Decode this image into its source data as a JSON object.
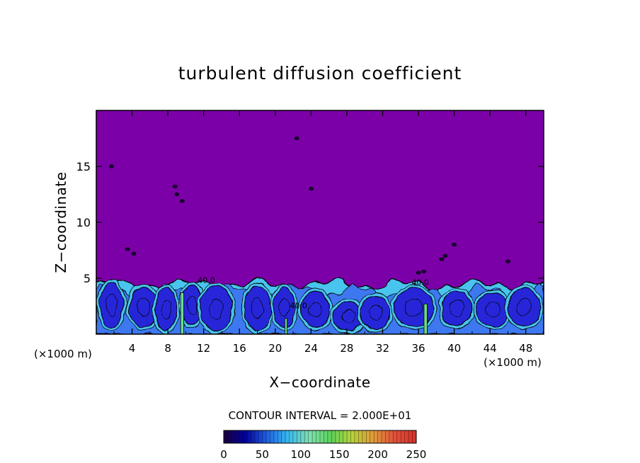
{
  "chart_data": {
    "type": "heatmap",
    "title": "turbulent diffusion coefficient",
    "xlabel": "X−coordinate",
    "ylabel": "Z−coordinate",
    "x_unit_left": "(×1000 m)",
    "x_unit_right": "(×1000 m)",
    "xlim": [
      0,
      50
    ],
    "ylim": [
      0,
      20
    ],
    "x_ticks": [
      4,
      8,
      12,
      16,
      20,
      24,
      28,
      32,
      36,
      40,
      44,
      48
    ],
    "y_ticks": [
      5,
      10,
      15
    ],
    "grid": false,
    "background_value": 0,
    "boundary_layer_top_z": 5,
    "contour_interval_text": "CONTOUR INTERVAL = 2.000E+01",
    "contour_interval": 20,
    "contour_labels": [
      {
        "x": 12.3,
        "z": 4.6,
        "text": "40.0"
      },
      {
        "x": 22.6,
        "z": 2.3,
        "text": "40.0"
      },
      {
        "x": 36.2,
        "z": 4.4,
        "text": "40.0"
      }
    ],
    "eddies": [
      {
        "x": 1.7,
        "z": 2.6,
        "rx": 1.3,
        "rz": 2.0,
        "v": 28
      },
      {
        "x": 5.3,
        "z": 2.4,
        "rx": 1.6,
        "rz": 1.8,
        "v": 26
      },
      {
        "x": 7.8,
        "z": 2.2,
        "rx": 1.2,
        "rz": 1.9,
        "v": 22
      },
      {
        "x": 10.7,
        "z": 2.6,
        "rx": 1.1,
        "rz": 1.8,
        "v": 30
      },
      {
        "x": 13.4,
        "z": 2.3,
        "rx": 1.8,
        "rz": 2.0,
        "v": 22
      },
      {
        "x": 18.0,
        "z": 2.3,
        "rx": 1.5,
        "rz": 2.0,
        "v": 24
      },
      {
        "x": 21.0,
        "z": 2.4,
        "rx": 1.2,
        "rz": 1.8,
        "v": 24
      },
      {
        "x": 24.5,
        "z": 2.2,
        "rx": 1.6,
        "rz": 1.6,
        "v": 30
      },
      {
        "x": 28.2,
        "z": 1.6,
        "rx": 1.7,
        "rz": 1.3,
        "v": 26
      },
      {
        "x": 31.2,
        "z": 1.9,
        "rx": 1.6,
        "rz": 1.5,
        "v": 30
      },
      {
        "x": 35.5,
        "z": 2.4,
        "rx": 2.2,
        "rz": 1.7,
        "v": 32
      },
      {
        "x": 40.3,
        "z": 2.3,
        "rx": 1.7,
        "rz": 1.6,
        "v": 30
      },
      {
        "x": 44.3,
        "z": 2.2,
        "rx": 1.8,
        "rz": 1.5,
        "v": 30
      },
      {
        "x": 47.8,
        "z": 2.4,
        "rx": 1.8,
        "rz": 1.7,
        "v": 34
      }
    ],
    "plumes": [
      {
        "x": 9.6,
        "z0": 0.0,
        "z1": 3.7,
        "w": 0.35,
        "v": 150
      },
      {
        "x": 21.2,
        "z0": 0.0,
        "z1": 1.4,
        "w": 0.25,
        "v": 130
      },
      {
        "x": 36.8,
        "z0": 0.0,
        "z1": 2.7,
        "w": 0.35,
        "v": 150
      }
    ],
    "isolated_patches": [
      {
        "x": 1.7,
        "z": 15.0
      },
      {
        "x": 8.8,
        "z": 13.2
      },
      {
        "x": 9.0,
        "z": 12.5
      },
      {
        "x": 9.6,
        "z": 11.9
      },
      {
        "x": 3.5,
        "z": 7.6
      },
      {
        "x": 4.2,
        "z": 7.2
      },
      {
        "x": 22.4,
        "z": 17.5
      },
      {
        "x": 24.0,
        "z": 13.0
      },
      {
        "x": 39.0,
        "z": 7.0
      },
      {
        "x": 40.0,
        "z": 8.0
      },
      {
        "x": 36.0,
        "z": 5.5
      },
      {
        "x": 36.6,
        "z": 5.6
      },
      {
        "x": 38.6,
        "z": 6.7
      },
      {
        "x": 46.0,
        "z": 6.5
      }
    ],
    "colorbar": {
      "min": 0,
      "max": 250,
      "tick_values": [
        0,
        50,
        100,
        150,
        200,
        250
      ],
      "colors": [
        "#1b0038",
        "#0000a0",
        "#1f5fe0",
        "#38b8ee",
        "#7fe0b0",
        "#5bd25b",
        "#b8d23a",
        "#e09a3a",
        "#e0503a",
        "#d8302a"
      ]
    },
    "colors": {
      "background": "#7c00a8",
      "low_blue": "#2828d8",
      "mid_blue": "#3c78f0",
      "cyan": "#48c4ee",
      "green": "#6fdc84"
    }
  }
}
